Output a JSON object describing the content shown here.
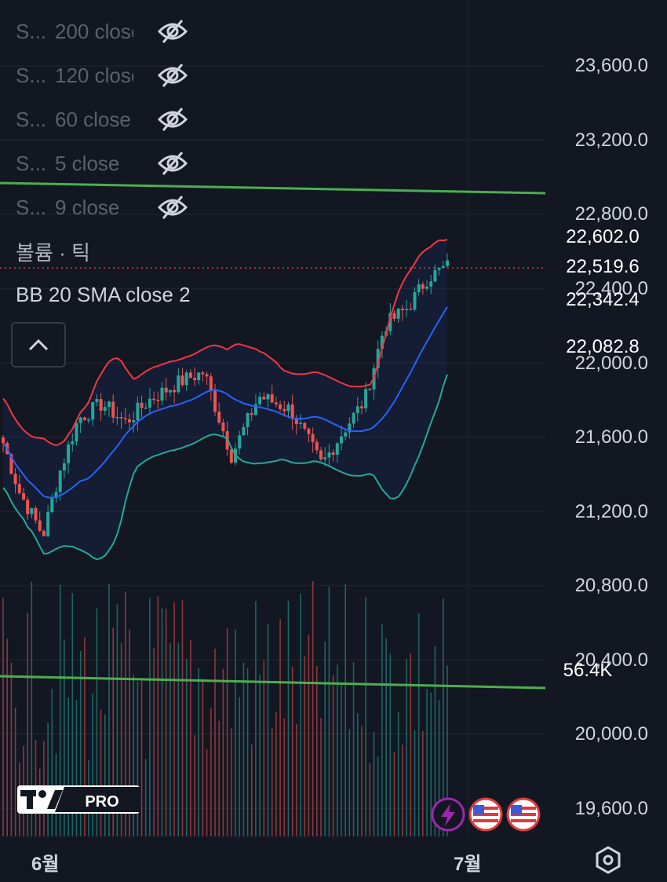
{
  "legend": {
    "items": [
      {
        "name": "S...",
        "value": "200 close"
      },
      {
        "name": "S...",
        "value": "120 close"
      },
      {
        "name": "S...",
        "value": "60 close"
      },
      {
        "name": "S...",
        "value": "5 close"
      },
      {
        "name": "S...",
        "value": "9 close"
      }
    ],
    "volume_label": "볼륨 · 틱",
    "bb_label": "BB 20 SMA close 2"
  },
  "colors": {
    "background": "#131722",
    "up": "#26a69a",
    "down": "#ef5350",
    "bb_upper": "#f23645",
    "bb_middle": "#2962ff",
    "bb_lower": "#22ab94",
    "trendline": "#4caf50"
  },
  "price_tags": [
    {
      "label": "22,602.0",
      "color": "#e03a3e"
    },
    {
      "label": "22,519.6",
      "color": "#e03a3e"
    },
    {
      "label": "22,342.4",
      "color": "#2962ff"
    },
    {
      "label": "22,082.8",
      "color": "#2e8b6a"
    },
    {
      "label": "56.4K",
      "color": "#e05252"
    }
  ],
  "chart_data": {
    "type": "candlestick",
    "y_axis": {
      "ticks": [
        "23,600.0",
        "23,200.0",
        "22,800.0",
        "22,400.0",
        "22,000.0",
        "21,600.0",
        "21,200.0",
        "20,800.0",
        "20,400.0",
        "20,000.0",
        "19,600.0"
      ],
      "tick_values": [
        23600,
        23200,
        22800,
        22400,
        22000,
        21600,
        21200,
        20800,
        20400,
        20000,
        19600
      ]
    },
    "x_axis": {
      "labels": [
        "6월",
        "7월"
      ]
    },
    "last_price": 22519.6,
    "volume_last": "56.4K",
    "bb_upper_last": 22602.0,
    "bb_middle_last": 22342.4,
    "bb_lower_last": 22082.8
  },
  "icons": {
    "eye": "eye-off-icon",
    "chevron": "chevron-up-icon",
    "lightning": "lightning-icon",
    "flag": "us-flag-icon",
    "settings": "settings-icon"
  },
  "logo": {
    "text": "PRO"
  }
}
